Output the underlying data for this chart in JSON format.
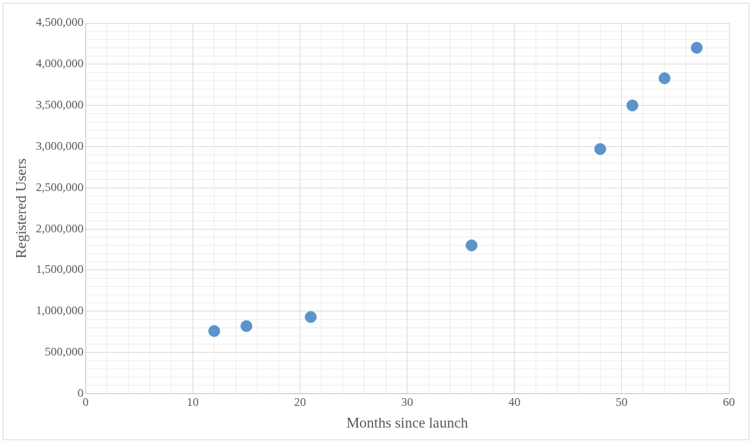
{
  "chart_data": {
    "type": "scatter",
    "xlabel": "Months since launch",
    "ylabel": "Registered Users",
    "x": [
      12,
      15,
      21,
      36,
      48,
      51,
      54,
      57
    ],
    "series": [
      {
        "color": "#5b93cc",
        "values": [
          760000,
          820000,
          930000,
          1800000,
          2970000,
          3500000,
          3830000,
          4200000
        ]
      }
    ],
    "xlim": [
      0,
      60
    ],
    "xticks": [
      0,
      10,
      20,
      30,
      40,
      50,
      60
    ],
    "ylim": [
      0,
      4500000
    ],
    "yticks": [
      0,
      {
        "value": 500000,
        "label": "500,000"
      },
      {
        "value": 1000000,
        "label": "1,000,000"
      },
      {
        "value": 1500000,
        "label": "1,500,000"
      },
      {
        "value": 2000000,
        "label": "2,000,000"
      },
      {
        "value": 2500000,
        "label": "2,500,000"
      },
      {
        "value": 3000000,
        "label": "3,000,000"
      },
      {
        "value": 3500000,
        "label": "3,500,000"
      },
      {
        "value": 4000000,
        "label": "4,000,000"
      },
      {
        "value": 4500000,
        "label": "4,500,000"
      }
    ],
    "grid": true,
    "legend": false,
    "marker": "circle"
  }
}
